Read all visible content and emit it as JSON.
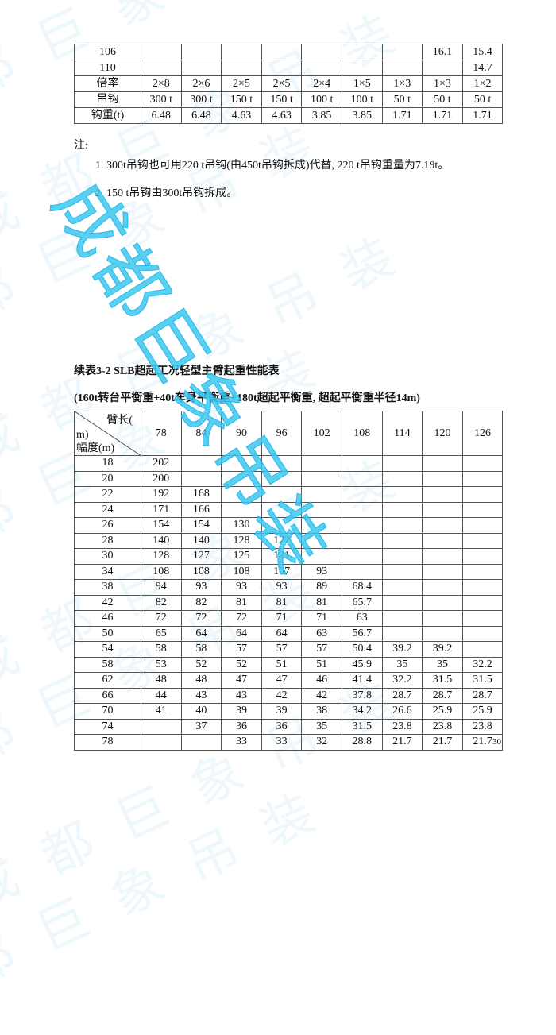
{
  "watermark": {
    "text": "成都巨象吊装",
    "color": "#3cc8f0"
  },
  "table1": {
    "rows": [
      {
        "label": "106",
        "values": [
          "",
          "",
          "",
          "",
          "",
          "",
          "",
          "16.1",
          "15.4"
        ]
      },
      {
        "label": "110",
        "values": [
          "",
          "",
          "",
          "",
          "",
          "",
          "",
          "",
          "14.7"
        ]
      },
      {
        "label": "倍率",
        "values": [
          "2×8",
          "2×6",
          "2×5",
          "2×5",
          "2×4",
          "1×5",
          "1×3",
          "1×3",
          "1×2"
        ]
      },
      {
        "label": "吊钩",
        "values": [
          "300 t",
          "300 t",
          "150 t",
          "150 t",
          "100 t",
          "100 t",
          "50 t",
          "50 t",
          "50 t"
        ]
      },
      {
        "label": "钩重(t)",
        "values": [
          "6.48",
          "6.48",
          "4.63",
          "4.63",
          "3.85",
          "3.85",
          "1.71",
          "1.71",
          "1.71"
        ]
      }
    ]
  },
  "notes": {
    "heading": "注:",
    "items": [
      "1. 300t吊钩也可用220 t吊钩(由450t吊钩拆成)代替, 220 t吊钩重量为7.19t。",
      "2. 150 t吊钩由300t吊钩拆成。"
    ]
  },
  "table2": {
    "title": "续表3-2 SLB超起工况轻型主臂起重性能表",
    "subtitle": "(160t转台平衡重+40t车身平衡重+180t超起平衡重, 超起平衡重半径14m)",
    "corner_top": "臂长(",
    "corner_mid": "m)",
    "corner_bottom": "幅度(m)",
    "columns": [
      "78",
      "84",
      "90",
      "96",
      "102",
      "108",
      "114",
      "120",
      "126"
    ],
    "rows": [
      {
        "label": "18",
        "values": [
          "202",
          "",
          "",
          "",
          "",
          "",
          "",
          "",
          ""
        ]
      },
      {
        "label": "20",
        "values": [
          "200",
          "",
          "",
          "",
          "",
          "",
          "",
          "",
          ""
        ]
      },
      {
        "label": "22",
        "values": [
          "192",
          "168",
          "",
          "",
          "",
          "",
          "",
          "",
          ""
        ]
      },
      {
        "label": "24",
        "values": [
          "171",
          "166",
          "",
          "",
          "",
          "",
          "",
          "",
          ""
        ]
      },
      {
        "label": "26",
        "values": [
          "154",
          "154",
          "130",
          "",
          "",
          "",
          "",
          "",
          ""
        ]
      },
      {
        "label": "28",
        "values": [
          "140",
          "140",
          "128",
          "122",
          "",
          "",
          "",
          "",
          ""
        ]
      },
      {
        "label": "30",
        "values": [
          "128",
          "127",
          "125",
          "121",
          "",
          "",
          "",
          "",
          ""
        ]
      },
      {
        "label": "34",
        "values": [
          "108",
          "108",
          "108",
          "107",
          "93",
          "",
          "",
          "",
          ""
        ]
      },
      {
        "label": "38",
        "values": [
          "94",
          "93",
          "93",
          "93",
          "89",
          "68.4",
          "",
          "",
          ""
        ]
      },
      {
        "label": "42",
        "values": [
          "82",
          "82",
          "81",
          "81",
          "81",
          "65.7",
          "",
          "",
          ""
        ]
      },
      {
        "label": "46",
        "values": [
          "72",
          "72",
          "72",
          "71",
          "71",
          "63",
          "",
          "",
          ""
        ]
      },
      {
        "label": "50",
        "values": [
          "65",
          "64",
          "64",
          "64",
          "63",
          "56.7",
          "",
          "",
          ""
        ]
      },
      {
        "label": "54",
        "values": [
          "58",
          "58",
          "57",
          "57",
          "57",
          "50.4",
          "39.2",
          "39.2",
          ""
        ]
      },
      {
        "label": "58",
        "values": [
          "53",
          "52",
          "52",
          "51",
          "51",
          "45.9",
          "35",
          "35",
          "32.2"
        ]
      },
      {
        "label": "62",
        "values": [
          "48",
          "48",
          "47",
          "47",
          "46",
          "41.4",
          "32.2",
          "31.5",
          "31.5"
        ]
      },
      {
        "label": "66",
        "values": [
          "44",
          "43",
          "43",
          "42",
          "42",
          "37.8",
          "28.7",
          "28.7",
          "28.7"
        ]
      },
      {
        "label": "70",
        "values": [
          "41",
          "40",
          "39",
          "39",
          "38",
          "34.2",
          "26.6",
          "25.9",
          "25.9"
        ]
      },
      {
        "label": "74",
        "values": [
          "",
          "37",
          "36",
          "36",
          "35",
          "31.5",
          "23.8",
          "23.8",
          "23.8"
        ]
      },
      {
        "label": "78",
        "values": [
          "",
          "",
          "33",
          "33",
          "32",
          "28.8",
          "21.7",
          "21.7",
          "21.7"
        ]
      }
    ]
  },
  "page_number": "30"
}
